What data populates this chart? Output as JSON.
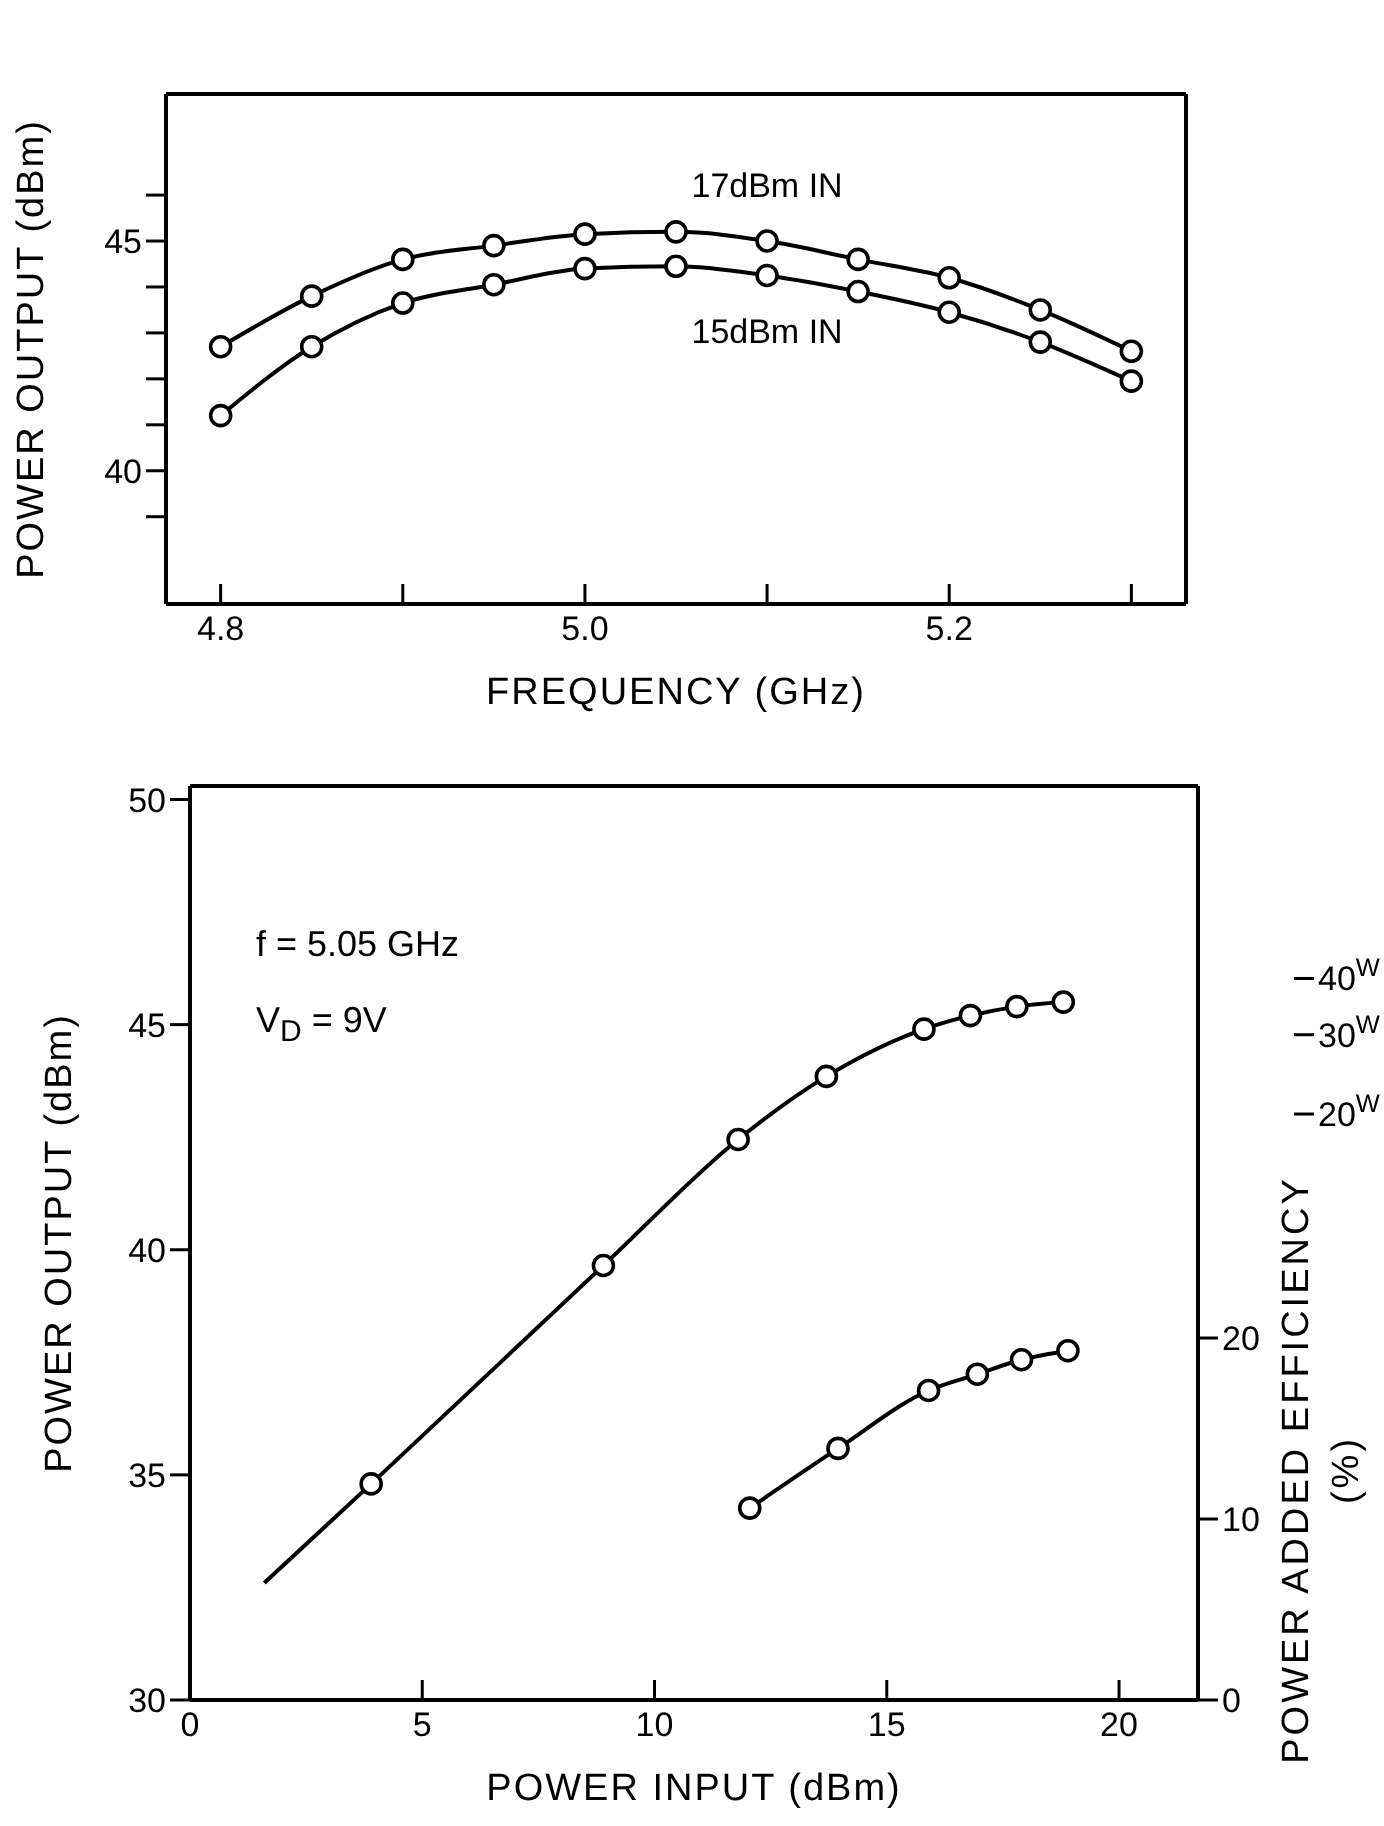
{
  "chart_data": [
    {
      "type": "line",
      "xlabel": "FREQUENCY   (GHz)",
      "ylabel": "POWER OUTPUT (dBm)",
      "marker": "circle",
      "x": [
        4.8,
        4.85,
        4.9,
        4.95,
        5.0,
        5.05,
        5.1,
        5.15,
        5.2,
        5.25,
        5.3
      ],
      "series": [
        {
          "name": "17dBm IN",
          "color": "#000000",
          "values": [
            42.7,
            43.8,
            44.6,
            44.9,
            45.15,
            45.2,
            45.0,
            44.6,
            44.2,
            43.5,
            42.6
          ]
        },
        {
          "name": "15dBm IN",
          "color": "#000000",
          "values": [
            41.2,
            42.7,
            43.65,
            44.05,
            44.4,
            44.45,
            44.25,
            43.9,
            43.45,
            42.8,
            41.95
          ]
        }
      ],
      "xlim": [
        4.77,
        5.33
      ],
      "xticks": [
        4.8,
        {
          "value": 4.9,
          "label": null
        },
        {
          "value": 5.0,
          "label": "5.0"
        },
        {
          "value": 5.1,
          "label": null
        },
        5.2,
        {
          "value": 5.3,
          "label": null
        }
      ],
      "ylim": [
        37.1,
        48.2
      ],
      "yticks": [
        {
          "value": 39,
          "label": null
        },
        40,
        {
          "value": 41,
          "label": null
        },
        {
          "value": 42,
          "label": null
        },
        {
          "value": 43,
          "label": null
        },
        {
          "value": 44,
          "label": null
        },
        45,
        {
          "value": 46,
          "label": null
        }
      ]
    },
    {
      "type": "line",
      "xlabel": "POWER INPUT   (dBm)",
      "ylabel": "POWER OUTPUT  (dBm)",
      "y2label": "POWER ADDED EFFICIENCY (%)",
      "annotations": [
        "f = 5.05 GHz",
        "V$_{D}$ = 9V"
      ],
      "series": [
        {
          "type": "line",
          "marker": "none",
          "color": "#000000",
          "x": [
            1.6,
            3.9,
            8.9,
            11.8,
            13.7,
            15.8,
            16.8,
            17.8,
            18.8
          ],
          "values": [
            32.6,
            34.8,
            39.65,
            42.45,
            43.85,
            44.9,
            45.2,
            45.4,
            45.5
          ]
        },
        {
          "type": "scatter",
          "marker": "circle",
          "color": "#000000",
          "x": [
            3.9,
            8.9,
            11.8,
            13.7,
            15.8,
            16.8,
            17.8,
            18.8
          ],
          "values": [
            34.8,
            39.65,
            42.45,
            43.85,
            44.9,
            45.2,
            45.4,
            45.5
          ]
        },
        {
          "type": "line",
          "marker": "circle",
          "axis": "y2",
          "color": "#000000",
          "x": [
            12.05,
            13.95,
            15.9,
            16.95,
            17.9,
            18.9
          ],
          "values": [
            10.6,
            13.9,
            17.1,
            18.0,
            18.8,
            19.3
          ]
        }
      ],
      "xlim": [
        0,
        21.7
      ],
      "xticks": [
        0,
        5,
        10,
        15,
        20
      ],
      "ylim": [
        30,
        50.3
      ],
      "yticks": [
        30,
        35,
        40,
        45,
        50
      ],
      "y2lim": [
        0,
        50.5
      ],
      "y2ticks": [
        0,
        10,
        20
      ],
      "log": "y3",
      "y3lim": [
        1,
        107
      ],
      "y3ticks": [
        {
          "value": 40,
          "label": "40$^{W}$"
        },
        {
          "value": 30,
          "label": "30$^{W}$"
        },
        {
          "value": 20,
          "label": "20$^{W}$"
        }
      ]
    }
  ]
}
